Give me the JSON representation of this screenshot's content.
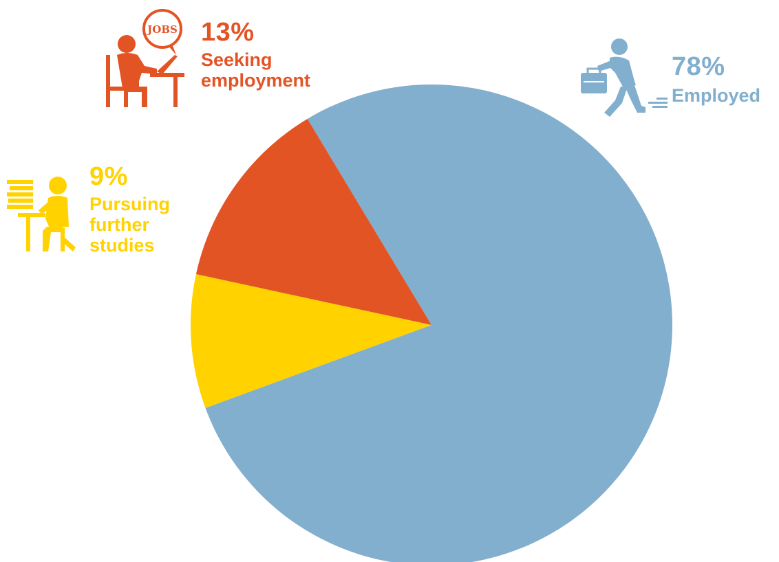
{
  "chart_data": {
    "type": "pie",
    "title": "",
    "slices": [
      {
        "label": "Employed",
        "value": 78,
        "value_label": "78%",
        "label_text": "Employed",
        "color": "#82AFCD",
        "icon": "businessman-with-briefcase-walking-icon"
      },
      {
        "label": "Pursuing further studies",
        "value": 9,
        "value_label": "9%",
        "label_text": "Pursuing\nfurther\nstudies",
        "color": "#FFD200",
        "icon": "student-studying-with-books-icon"
      },
      {
        "label": "Seeking employment",
        "value": 13,
        "value_label": "13%",
        "label_text": "Seeking\nemployment",
        "color": "#E35425",
        "icon": "job-seeker-at-laptop-icon"
      }
    ],
    "legend": "callouts-with-icons"
  },
  "icons": {
    "jobs_bubble_text": "JOBS"
  }
}
